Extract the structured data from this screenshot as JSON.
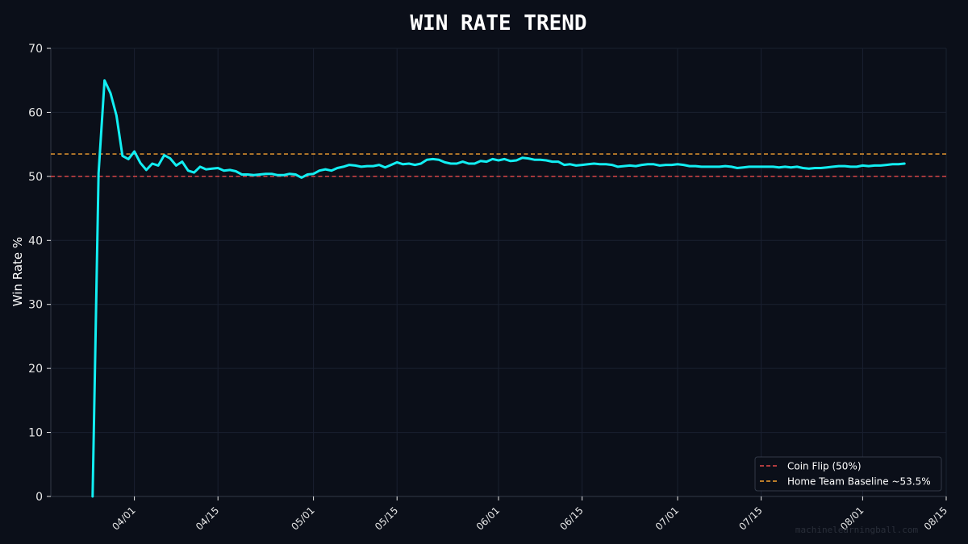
{
  "chart_data": {
    "type": "line",
    "title": "WIN RATE TREND",
    "xlabel": "",
    "ylabel": "Win Rate %",
    "x_axis_type": "date",
    "xlim": [
      "2024-03-18",
      "2024-08-15"
    ],
    "ylim": [
      0,
      70
    ],
    "x_ticks": [
      "04/01",
      "04/15",
      "05/01",
      "05/15",
      "06/01",
      "06/15",
      "07/01",
      "07/15",
      "08/01",
      "08/15"
    ],
    "x_tick_dates": [
      "2024-04-01",
      "2024-04-15",
      "2024-05-01",
      "2024-05-15",
      "2024-06-01",
      "2024-06-15",
      "2024-07-01",
      "2024-07-15",
      "2024-08-01",
      "2024-08-15"
    ],
    "y_ticks": [
      0,
      10,
      20,
      30,
      40,
      50,
      60,
      70
    ],
    "grid": true,
    "legend_position": "bottom-right",
    "series": [
      {
        "name": "",
        "color": "#12eef2",
        "points": [
          [
            "2024-03-25",
            0
          ],
          [
            "2024-03-26",
            50.5
          ],
          [
            "2024-03-27",
            65
          ],
          [
            "2024-03-28",
            63
          ],
          [
            "2024-03-29",
            59.5
          ],
          [
            "2024-03-30",
            53.2
          ],
          [
            "2024-03-31",
            52.7
          ],
          [
            "2024-04-01",
            53.9
          ],
          [
            "2024-04-02",
            52.1
          ],
          [
            "2024-04-03",
            51
          ],
          [
            "2024-04-04",
            52
          ],
          [
            "2024-04-05",
            51.7
          ],
          [
            "2024-04-06",
            53.3
          ],
          [
            "2024-04-07",
            52.8
          ],
          [
            "2024-04-08",
            51.7
          ],
          [
            "2024-04-09",
            52.3
          ],
          [
            "2024-04-10",
            50.9
          ],
          [
            "2024-04-11",
            50.6
          ],
          [
            "2024-04-12",
            51.5
          ],
          [
            "2024-04-13",
            51.1
          ],
          [
            "2024-04-14",
            51.2
          ],
          [
            "2024-04-15",
            51.3
          ],
          [
            "2024-04-16",
            50.9
          ],
          [
            "2024-04-17",
            51
          ],
          [
            "2024-04-18",
            50.8
          ],
          [
            "2024-04-19",
            50.3
          ],
          [
            "2024-04-20",
            50.3
          ],
          [
            "2024-04-21",
            50.2
          ],
          [
            "2024-04-22",
            50.3
          ],
          [
            "2024-04-23",
            50.4
          ],
          [
            "2024-04-24",
            50.4
          ],
          [
            "2024-04-25",
            50.2
          ],
          [
            "2024-04-26",
            50.2
          ],
          [
            "2024-04-27",
            50.4
          ],
          [
            "2024-04-28",
            50.3
          ],
          [
            "2024-04-29",
            49.8
          ],
          [
            "2024-04-30",
            50.3
          ],
          [
            "2024-05-01",
            50.4
          ],
          [
            "2024-05-02",
            50.9
          ],
          [
            "2024-05-03",
            51.1
          ],
          [
            "2024-05-04",
            50.9
          ],
          [
            "2024-05-05",
            51.3
          ],
          [
            "2024-05-06",
            51.5
          ],
          [
            "2024-05-07",
            51.8
          ],
          [
            "2024-05-08",
            51.7
          ],
          [
            "2024-05-09",
            51.5
          ],
          [
            "2024-05-10",
            51.6
          ],
          [
            "2024-05-11",
            51.6
          ],
          [
            "2024-05-12",
            51.8
          ],
          [
            "2024-05-13",
            51.4
          ],
          [
            "2024-05-14",
            51.8
          ],
          [
            "2024-05-15",
            52.2
          ],
          [
            "2024-05-16",
            51.9
          ],
          [
            "2024-05-17",
            52
          ],
          [
            "2024-05-18",
            51.8
          ],
          [
            "2024-05-19",
            52
          ],
          [
            "2024-05-20",
            52.6
          ],
          [
            "2024-05-21",
            52.7
          ],
          [
            "2024-05-22",
            52.6
          ],
          [
            "2024-05-23",
            52.2
          ],
          [
            "2024-05-24",
            52
          ],
          [
            "2024-05-25",
            52
          ],
          [
            "2024-05-26",
            52.3
          ],
          [
            "2024-05-27",
            52
          ],
          [
            "2024-05-28",
            52
          ],
          [
            "2024-05-29",
            52.4
          ],
          [
            "2024-05-30",
            52.3
          ],
          [
            "2024-05-31",
            52.7
          ],
          [
            "2024-06-01",
            52.5
          ],
          [
            "2024-06-02",
            52.7
          ],
          [
            "2024-06-03",
            52.4
          ],
          [
            "2024-06-04",
            52.5
          ],
          [
            "2024-06-05",
            52.9
          ],
          [
            "2024-06-06",
            52.8
          ],
          [
            "2024-06-07",
            52.6
          ],
          [
            "2024-06-08",
            52.6
          ],
          [
            "2024-06-09",
            52.5
          ],
          [
            "2024-06-10",
            52.3
          ],
          [
            "2024-06-11",
            52.3
          ],
          [
            "2024-06-12",
            51.8
          ],
          [
            "2024-06-13",
            51.9
          ],
          [
            "2024-06-14",
            51.7
          ],
          [
            "2024-06-15",
            51.8
          ],
          [
            "2024-06-16",
            51.9
          ],
          [
            "2024-06-17",
            52
          ],
          [
            "2024-06-18",
            51.9
          ],
          [
            "2024-06-19",
            51.9
          ],
          [
            "2024-06-20",
            51.8
          ],
          [
            "2024-06-21",
            51.5
          ],
          [
            "2024-06-22",
            51.6
          ],
          [
            "2024-06-23",
            51.7
          ],
          [
            "2024-06-24",
            51.6
          ],
          [
            "2024-06-25",
            51.8
          ],
          [
            "2024-06-26",
            51.9
          ],
          [
            "2024-06-27",
            51.9
          ],
          [
            "2024-06-28",
            51.7
          ],
          [
            "2024-06-29",
            51.8
          ],
          [
            "2024-06-30",
            51.8
          ],
          [
            "2024-07-01",
            51.9
          ],
          [
            "2024-07-02",
            51.8
          ],
          [
            "2024-07-03",
            51.6
          ],
          [
            "2024-07-04",
            51.6
          ],
          [
            "2024-07-05",
            51.5
          ],
          [
            "2024-07-06",
            51.5
          ],
          [
            "2024-07-07",
            51.5
          ],
          [
            "2024-07-08",
            51.5
          ],
          [
            "2024-07-09",
            51.6
          ],
          [
            "2024-07-10",
            51.5
          ],
          [
            "2024-07-11",
            51.3
          ],
          [
            "2024-07-12",
            51.4
          ],
          [
            "2024-07-13",
            51.5
          ],
          [
            "2024-07-14",
            51.5
          ],
          [
            "2024-07-15",
            51.5
          ],
          [
            "2024-07-16",
            51.5
          ],
          [
            "2024-07-17",
            51.5
          ],
          [
            "2024-07-18",
            51.4
          ],
          [
            "2024-07-19",
            51.5
          ],
          [
            "2024-07-20",
            51.4
          ],
          [
            "2024-07-21",
            51.5
          ],
          [
            "2024-07-22",
            51.3
          ],
          [
            "2024-07-23",
            51.2
          ],
          [
            "2024-07-24",
            51.3
          ],
          [
            "2024-07-25",
            51.3
          ],
          [
            "2024-07-26",
            51.4
          ],
          [
            "2024-07-27",
            51.5
          ],
          [
            "2024-07-28",
            51.6
          ],
          [
            "2024-07-29",
            51.6
          ],
          [
            "2024-07-30",
            51.5
          ],
          [
            "2024-07-31",
            51.5
          ],
          [
            "2024-08-01",
            51.7
          ],
          [
            "2024-08-02",
            51.6
          ],
          [
            "2024-08-03",
            51.7
          ],
          [
            "2024-08-04",
            51.7
          ],
          [
            "2024-08-05",
            51.8
          ],
          [
            "2024-08-06",
            51.9
          ],
          [
            "2024-08-07",
            51.9
          ],
          [
            "2024-08-08",
            52
          ]
        ]
      }
    ],
    "reference_lines": [
      {
        "name": "Coin Flip (50%)",
        "value": 50,
        "color": "#e84a4a",
        "style": "dashed"
      },
      {
        "name": "Home Team Baseline ~53.5%",
        "value": 53.5,
        "color": "#f5a030",
        "style": "dashed"
      }
    ]
  },
  "watermark": "machinelearningball.com",
  "colors": {
    "background": "#0b0f19",
    "text": "#ffffff",
    "tick_text": "#e8e8e8",
    "grid": "#1a2030",
    "axis": "#333a48",
    "legend_bg": "#0b0f19",
    "legend_border": "#333a48",
    "watermark": "#2a2f3a"
  }
}
